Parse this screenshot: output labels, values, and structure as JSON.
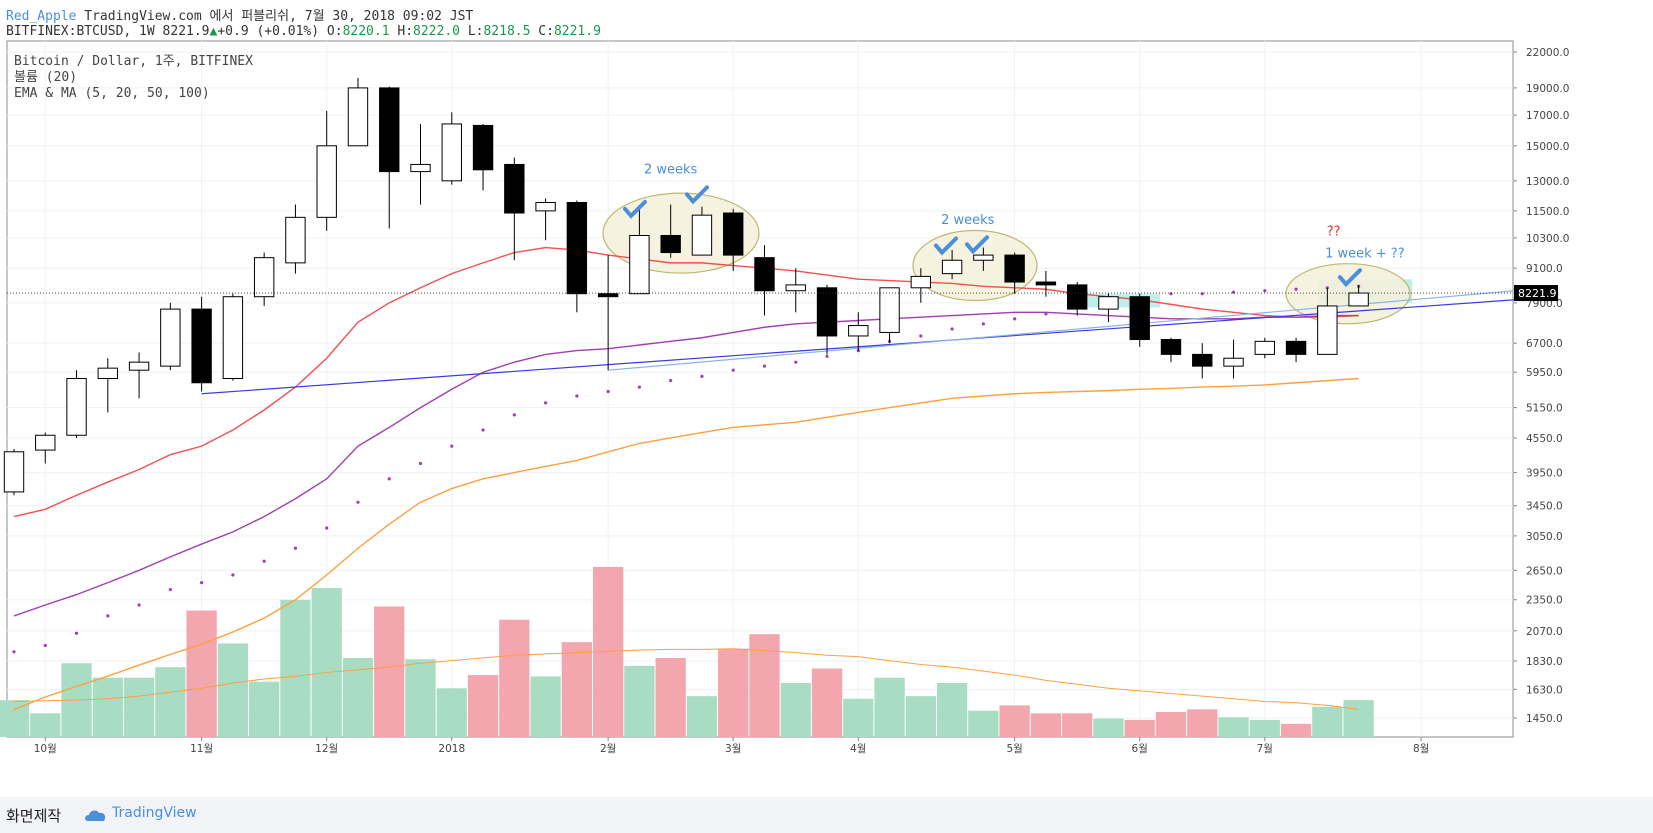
{
  "header": {
    "user": "Red_Apple",
    "published": "TradingView.com 에서 퍼블리쉬, 7월 30, 2018 09:02 JST",
    "symbol": "BITFINEX:BTCUSD, 1W",
    "last": "8221.9",
    "change": "+0.9 (+0.01%)",
    "o_label": "O:",
    "o": "8220.1",
    "h_label": "H:",
    "h": "8222.0",
    "l_label": "L:",
    "l": "8218.5",
    "c_label": "C:",
    "c": "8221.9"
  },
  "legend": {
    "line1": "Bitcoin / Dollar, 1주, BITFINEX",
    "line2": "볼륨 (20)",
    "line3": "EMA & MA (5, 20, 50, 100)"
  },
  "footer": {
    "made_by": "화면제작",
    "brand": "TradingView"
  },
  "colors": {
    "up_fill": "#ffffff",
    "down_fill": "#000000",
    "vol_up": "#a8dcc3",
    "vol_down": "#f3a6ad",
    "ema_red": "#f05050",
    "ma_purple": "#a040b0",
    "ma_orange": "#ffa040",
    "trend_blue": "#3a3adf",
    "trend_lightblue": "#8ab4e8",
    "annotation_blue": "#4a8fd8",
    "annotation_red": "#e03030",
    "ellipse_fill": "#f4f1dc",
    "ellipse_stroke": "#b8b060",
    "highlight_box": "#b2ece8"
  },
  "chart_data": {
    "type": "candlestick",
    "title": "Bitcoin / Dollar, 1주, BITFINEX",
    "price_scale": "log",
    "ylim": [
      1400,
      22500
    ],
    "last_price": 8221.9,
    "y_tick_labels": [
      "22000.0",
      "19000.0",
      "17000.0",
      "15000.0",
      "13000.0",
      "11500.0",
      "10300.0",
      "9100.0",
      "7900.0",
      "6700.0",
      "5950.0",
      "5150.0",
      "4550.0",
      "3950.0",
      "3450.0",
      "3050.0",
      "2650.0",
      "2350.0",
      "2070.0",
      "1830.0",
      "1630.0",
      "1450.0"
    ],
    "x_tick_labels": [
      {
        "label": "10월",
        "index": 1
      },
      {
        "label": "11월",
        "index": 6
      },
      {
        "label": "12월",
        "index": 10
      },
      {
        "label": "2018",
        "index": 14
      },
      {
        "label": "2월",
        "index": 19
      },
      {
        "label": "3월",
        "index": 23
      },
      {
        "label": "4월",
        "index": 27
      },
      {
        "label": "5월",
        "index": 32
      },
      {
        "label": "6월",
        "index": 36
      },
      {
        "label": "7월",
        "index": 40
      },
      {
        "label": "8월",
        "index": 45
      }
    ],
    "candles": [
      {
        "o": 3650,
        "h": 4350,
        "l": 3600,
        "c": 4300,
        "v": 1710
      },
      {
        "o": 4330,
        "h": 4650,
        "l": 4100,
        "c": 4600,
        "v": 1610
      },
      {
        "o": 4600,
        "h": 6000,
        "l": 4550,
        "c": 5800,
        "v": 1990
      },
      {
        "o": 5800,
        "h": 6300,
        "l": 5050,
        "c": 6050,
        "v": 1880
      },
      {
        "o": 6000,
        "h": 6450,
        "l": 5350,
        "c": 6200,
        "v": 1880
      },
      {
        "o": 6100,
        "h": 7900,
        "l": 6000,
        "c": 7700,
        "v": 1960
      },
      {
        "o": 7700,
        "h": 8100,
        "l": 5500,
        "c": 5700,
        "v": 2390
      },
      {
        "o": 5800,
        "h": 8200,
        "l": 5750,
        "c": 8100,
        "v": 2140
      },
      {
        "o": 8100,
        "h": 9700,
        "l": 7800,
        "c": 9500,
        "v": 1850
      },
      {
        "o": 9300,
        "h": 11800,
        "l": 8900,
        "c": 11200,
        "v": 2470
      },
      {
        "o": 11200,
        "h": 17300,
        "l": 10600,
        "c": 15000,
        "v": 2560
      },
      {
        "o": 15000,
        "h": 19800,
        "l": 15000,
        "c": 19000,
        "v": 2030
      },
      {
        "o": 19000,
        "h": 19100,
        "l": 10700,
        "c": 13500,
        "v": 2420
      },
      {
        "o": 13500,
        "h": 16400,
        "l": 11800,
        "c": 13900,
        "v": 2020
      },
      {
        "o": 13000,
        "h": 17200,
        "l": 12800,
        "c": 16400,
        "v": 1800
      },
      {
        "o": 16300,
        "h": 16400,
        "l": 12500,
        "c": 13600,
        "v": 1900
      },
      {
        "o": 13900,
        "h": 14300,
        "l": 9400,
        "c": 11400,
        "v": 2320
      },
      {
        "o": 11500,
        "h": 12100,
        "l": 10200,
        "c": 11900,
        "v": 1890
      },
      {
        "o": 11900,
        "h": 12000,
        "l": 7600,
        "c": 8200,
        "v": 2150
      },
      {
        "o": 8200,
        "h": 9600,
        "l": 6000,
        "c": 8100,
        "v": 2720
      },
      {
        "o": 8200,
        "h": 11700,
        "l": 8200,
        "c": 10400,
        "v": 1970
      },
      {
        "o": 10400,
        "h": 11800,
        "l": 9500,
        "c": 9700,
        "v": 2030
      },
      {
        "o": 9600,
        "h": 11700,
        "l": 9600,
        "c": 11300,
        "v": 1740
      },
      {
        "o": 11400,
        "h": 11600,
        "l": 9000,
        "c": 9600,
        "v": 2100
      },
      {
        "o": 9500,
        "h": 10000,
        "l": 7500,
        "c": 8300,
        "v": 2210
      },
      {
        "o": 8300,
        "h": 9100,
        "l": 7600,
        "c": 8500,
        "v": 1840
      },
      {
        "o": 8400,
        "h": 8500,
        "l": 6400,
        "c": 6900,
        "v": 1950
      },
      {
        "o": 6900,
        "h": 7600,
        "l": 6500,
        "c": 7200,
        "v": 1720
      },
      {
        "o": 7000,
        "h": 8400,
        "l": 6700,
        "c": 8400,
        "v": 1880
      },
      {
        "o": 8400,
        "h": 9100,
        "l": 7900,
        "c": 8800,
        "v": 1740
      },
      {
        "o": 8900,
        "h": 9800,
        "l": 8700,
        "c": 9400,
        "v": 1840
      },
      {
        "o": 9400,
        "h": 9900,
        "l": 9000,
        "c": 9600,
        "v": 1630
      },
      {
        "o": 9600,
        "h": 9700,
        "l": 8200,
        "c": 8600,
        "v": 1670
      },
      {
        "o": 8600,
        "h": 9000,
        "l": 8100,
        "c": 8500,
        "v": 1610
      },
      {
        "o": 8500,
        "h": 8600,
        "l": 7500,
        "c": 7700,
        "v": 1610
      },
      {
        "o": 7700,
        "h": 8200,
        "l": 7300,
        "c": 8100,
        "v": 1570
      },
      {
        "o": 8100,
        "h": 8200,
        "l": 6600,
        "c": 6800,
        "v": 1560
      },
      {
        "o": 6800,
        "h": 6850,
        "l": 6200,
        "c": 6400,
        "v": 1620
      },
      {
        "o": 6400,
        "h": 6700,
        "l": 5800,
        "c": 6100,
        "v": 1640
      },
      {
        "o": 6100,
        "h": 6800,
        "l": 5800,
        "c": 6300,
        "v": 1580
      },
      {
        "o": 6400,
        "h": 6850,
        "l": 6300,
        "c": 6750,
        "v": 1560
      },
      {
        "o": 6750,
        "h": 6850,
        "l": 6200,
        "c": 6400,
        "v": 1530
      },
      {
        "o": 6400,
        "h": 8400,
        "l": 6400,
        "c": 7800,
        "v": 1660
      },
      {
        "o": 7800,
        "h": 8500,
        "l": 7800,
        "c": 8221.9,
        "v": 1710
      }
    ],
    "series": [
      {
        "name": "EMA 5 (dots)",
        "values": [
          1900,
          1950,
          2050,
          2200,
          2300,
          2450,
          2520,
          2600,
          2750,
          2900,
          3150,
          3500,
          3850,
          4100,
          4400,
          4700,
          5000,
          5250,
          5400,
          5500,
          5600,
          5750,
          5850,
          6000,
          6100,
          6200,
          6350,
          6500,
          6750,
          6900,
          7100,
          7250,
          7400,
          7550,
          7800,
          7900,
          8050,
          8200,
          8200,
          8250,
          8300,
          8350,
          8400,
          8450
        ]
      },
      {
        "name": "MA 20",
        "values": [
          3300,
          3400,
          3600,
          3800,
          4000,
          4250,
          4400,
          4700,
          5100,
          5600,
          6300,
          7300,
          7900,
          8400,
          8900,
          9300,
          9700,
          9900,
          9800,
          9600,
          9450,
          9300,
          9300,
          9200,
          9100,
          9000,
          8850,
          8700,
          8650,
          8600,
          8550,
          8450,
          8400,
          8350,
          8200,
          8100,
          8000,
          7850,
          7700,
          7600,
          7500,
          7450,
          7450,
          7500
        ]
      },
      {
        "name": "MA 50",
        "values": [
          2200,
          2300,
          2400,
          2520,
          2650,
          2800,
          2950,
          3100,
          3300,
          3550,
          3850,
          4400,
          4750,
          5150,
          5550,
          5950,
          6200,
          6400,
          6500,
          6550,
          6650,
          6750,
          6850,
          7000,
          7150,
          7250,
          7300,
          7350,
          7400,
          7450,
          7500,
          7550,
          7600,
          7600,
          7550,
          7500,
          7450,
          7400,
          7400,
          7400,
          7450,
          7450,
          7500,
          7500
        ]
      },
      {
        "name": "MA 100",
        "values": [
          1500,
          1580,
          1650,
          1720,
          1800,
          1880,
          1960,
          2060,
          2180,
          2350,
          2600,
          2900,
          3200,
          3500,
          3700,
          3850,
          3950,
          4050,
          4150,
          4300,
          4450,
          4550,
          4650,
          4750,
          4800,
          4850,
          4950,
          5050,
          5150,
          5250,
          5350,
          5400,
          5450,
          5480,
          5500,
          5520,
          5550,
          5570,
          5600,
          5620,
          5650,
          5700,
          5750,
          5800
        ]
      },
      {
        "name": "Volume MA",
        "values": [
          1700,
          1705,
          1710,
          1720,
          1740,
          1770,
          1800,
          1840,
          1870,
          1890,
          1920,
          1940,
          1960,
          1990,
          2010,
          2030,
          2050,
          2060,
          2070,
          2080,
          2090,
          2095,
          2095,
          2100,
          2085,
          2070,
          2050,
          2040,
          2010,
          1980,
          1960,
          1930,
          1900,
          1860,
          1830,
          1800,
          1780,
          1760,
          1740,
          1720,
          1700,
          1690,
          1670,
          1640
        ]
      }
    ],
    "trendlines": [
      {
        "color": "trend_blue",
        "from": {
          "index": 6,
          "price": 5450
        },
        "to": {
          "index": 48,
          "price": 8000
        }
      },
      {
        "color": "trend_lightblue",
        "from": {
          "index": 19,
          "price": 6000
        },
        "to": {
          "index": 48,
          "price": 8300
        }
      }
    ],
    "annotations": [
      {
        "text": "2 weeks",
        "index": 21,
        "price": 13400
      },
      {
        "text": "2 weeks",
        "index": 30.5,
        "price": 10900
      },
      {
        "text": "1 week + ??",
        "index": 43.2,
        "price": 9500
      },
      {
        "text": "??",
        "index": 42.2,
        "price": 10400
      }
    ]
  }
}
